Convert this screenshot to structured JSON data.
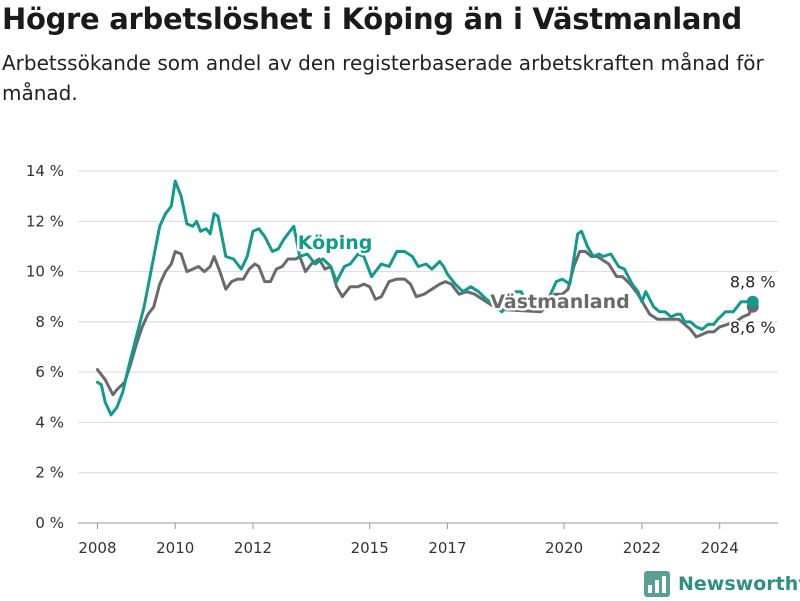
{
  "title": "Högre arbetslöshet i Köping än i Västmanland",
  "subtitle": "Arbetssökande som andel av den registerbaserade arbetskraften månad för månad.",
  "brand": "Newsworthy",
  "colors": {
    "koping": "#139a8f",
    "vastmanland": "#6a6a6a",
    "grid": "#d9d9d9",
    "brand": "#2f8f85"
  },
  "chart_data": {
    "type": "line",
    "title": "Högre arbetslöshet i Köping än i Västmanland",
    "subtitle": "Arbetssökande som andel av den registerbaserade arbetskraften månad för månad.",
    "xlabel": "",
    "ylabel": "",
    "grid": "horizontal",
    "ylim": [
      0,
      14
    ],
    "xlim": [
      2007.5,
      2025.5
    ],
    "y_ticks": [
      0,
      2,
      4,
      6,
      8,
      10,
      12,
      14
    ],
    "y_tick_labels": [
      "0 %",
      "2 %",
      "4 %",
      "6 %",
      "8 %",
      "10 %",
      "12 %",
      "14 %"
    ],
    "x_ticks": [
      2008,
      2010,
      2012,
      2015,
      2017,
      2020,
      2022,
      2024
    ],
    "x_tick_labels": [
      "2008",
      "2010",
      "2012",
      "2015",
      "2017",
      "2020",
      "2022",
      "2024"
    ],
    "series": [
      {
        "name": "Köping",
        "color": "#139a8f",
        "end_label": "8,8 %",
        "points": [
          [
            2008.0,
            5.6
          ],
          [
            2008.1,
            5.5
          ],
          [
            2008.2,
            4.8
          ],
          [
            2008.35,
            4.3
          ],
          [
            2008.5,
            4.6
          ],
          [
            2008.65,
            5.2
          ],
          [
            2008.8,
            6.2
          ],
          [
            2009.0,
            7.4
          ],
          [
            2009.2,
            8.6
          ],
          [
            2009.4,
            10.2
          ],
          [
            2009.6,
            11.8
          ],
          [
            2009.75,
            12.3
          ],
          [
            2009.9,
            12.6
          ],
          [
            2010.0,
            13.6
          ],
          [
            2010.15,
            13.0
          ],
          [
            2010.3,
            11.9
          ],
          [
            2010.45,
            11.8
          ],
          [
            2010.55,
            12.0
          ],
          [
            2010.65,
            11.6
          ],
          [
            2010.8,
            11.7
          ],
          [
            2010.9,
            11.5
          ],
          [
            2011.0,
            12.3
          ],
          [
            2011.1,
            12.2
          ],
          [
            2011.3,
            10.6
          ],
          [
            2011.5,
            10.5
          ],
          [
            2011.7,
            10.1
          ],
          [
            2011.85,
            10.6
          ],
          [
            2012.0,
            11.6
          ],
          [
            2012.15,
            11.7
          ],
          [
            2012.3,
            11.4
          ],
          [
            2012.5,
            10.8
          ],
          [
            2012.65,
            10.9
          ],
          [
            2012.8,
            11.3
          ],
          [
            2013.05,
            11.8
          ],
          [
            2013.2,
            10.6
          ],
          [
            2013.4,
            10.7
          ],
          [
            2013.6,
            10.3
          ],
          [
            2013.8,
            10.5
          ],
          [
            2014.0,
            10.2
          ],
          [
            2014.15,
            9.6
          ],
          [
            2014.35,
            10.2
          ],
          [
            2014.5,
            10.3
          ],
          [
            2014.7,
            10.7
          ],
          [
            2014.85,
            10.6
          ],
          [
            2014.95,
            10.2
          ],
          [
            2015.05,
            9.8
          ],
          [
            2015.3,
            10.3
          ],
          [
            2015.5,
            10.2
          ],
          [
            2015.7,
            10.8
          ],
          [
            2015.9,
            10.8
          ],
          [
            2016.1,
            10.6
          ],
          [
            2016.25,
            10.2
          ],
          [
            2016.45,
            10.3
          ],
          [
            2016.6,
            10.1
          ],
          [
            2016.8,
            10.4
          ],
          [
            2016.9,
            10.2
          ],
          [
            2017.0,
            9.9
          ],
          [
            2017.2,
            9.5
          ],
          [
            2017.4,
            9.2
          ],
          [
            2017.6,
            9.4
          ],
          [
            2017.8,
            9.2
          ],
          [
            2018.0,
            8.9
          ],
          [
            2018.2,
            8.7
          ],
          [
            2018.4,
            8.4
          ],
          [
            2018.6,
            8.8
          ],
          [
            2018.75,
            9.2
          ],
          [
            2018.9,
            9.2
          ],
          [
            2019.0,
            8.8
          ],
          [
            2019.2,
            8.7
          ],
          [
            2019.35,
            8.9
          ],
          [
            2019.5,
            8.6
          ],
          [
            2019.65,
            9.1
          ],
          [
            2019.8,
            9.6
          ],
          [
            2019.95,
            9.7
          ],
          [
            2020.15,
            9.5
          ],
          [
            2020.35,
            11.5
          ],
          [
            2020.45,
            11.6
          ],
          [
            2020.6,
            11.0
          ],
          [
            2020.75,
            10.6
          ],
          [
            2020.9,
            10.7
          ],
          [
            2021.0,
            10.6
          ],
          [
            2021.2,
            10.7
          ],
          [
            2021.4,
            10.2
          ],
          [
            2021.55,
            10.1
          ],
          [
            2021.75,
            9.5
          ],
          [
            2021.9,
            9.2
          ],
          [
            2022.0,
            8.8
          ],
          [
            2022.1,
            9.2
          ],
          [
            2022.3,
            8.6
          ],
          [
            2022.45,
            8.4
          ],
          [
            2022.6,
            8.4
          ],
          [
            2022.75,
            8.2
          ],
          [
            2022.9,
            8.3
          ],
          [
            2023.0,
            8.3
          ],
          [
            2023.1,
            8.0
          ],
          [
            2023.25,
            8.0
          ],
          [
            2023.4,
            7.8
          ],
          [
            2023.55,
            7.7
          ],
          [
            2023.7,
            7.9
          ],
          [
            2023.85,
            7.9
          ],
          [
            2023.95,
            8.1
          ],
          [
            2024.15,
            8.4
          ],
          [
            2024.35,
            8.4
          ],
          [
            2024.55,
            8.8
          ],
          [
            2024.75,
            8.8
          ],
          [
            2024.85,
            8.8
          ]
        ]
      },
      {
        "name": "Västmanland",
        "color": "#6a6a6a",
        "end_label": "8,6 %",
        "points": [
          [
            2008.0,
            6.1
          ],
          [
            2008.2,
            5.7
          ],
          [
            2008.4,
            5.1
          ],
          [
            2008.5,
            5.3
          ],
          [
            2008.7,
            5.6
          ],
          [
            2008.85,
            6.3
          ],
          [
            2009.0,
            7.1
          ],
          [
            2009.15,
            7.8
          ],
          [
            2009.3,
            8.3
          ],
          [
            2009.45,
            8.6
          ],
          [
            2009.6,
            9.5
          ],
          [
            2009.75,
            10.0
          ],
          [
            2009.9,
            10.3
          ],
          [
            2010.0,
            10.8
          ],
          [
            2010.15,
            10.7
          ],
          [
            2010.3,
            10.0
          ],
          [
            2010.45,
            10.1
          ],
          [
            2010.6,
            10.2
          ],
          [
            2010.75,
            10.0
          ],
          [
            2010.9,
            10.2
          ],
          [
            2011.0,
            10.6
          ],
          [
            2011.15,
            10.0
          ],
          [
            2011.3,
            9.3
          ],
          [
            2011.45,
            9.6
          ],
          [
            2011.6,
            9.7
          ],
          [
            2011.75,
            9.7
          ],
          [
            2011.9,
            10.1
          ],
          [
            2012.05,
            10.3
          ],
          [
            2012.15,
            10.2
          ],
          [
            2012.3,
            9.6
          ],
          [
            2012.45,
            9.6
          ],
          [
            2012.6,
            10.1
          ],
          [
            2012.75,
            10.2
          ],
          [
            2012.9,
            10.5
          ],
          [
            2013.1,
            10.5
          ],
          [
            2013.2,
            10.6
          ],
          [
            2013.35,
            10.0
          ],
          [
            2013.5,
            10.3
          ],
          [
            2013.7,
            10.5
          ],
          [
            2013.85,
            10.1
          ],
          [
            2014.0,
            10.2
          ],
          [
            2014.15,
            9.4
          ],
          [
            2014.3,
            9.0
          ],
          [
            2014.5,
            9.4
          ],
          [
            2014.7,
            9.4
          ],
          [
            2014.85,
            9.5
          ],
          [
            2015.0,
            9.4
          ],
          [
            2015.15,
            8.9
          ],
          [
            2015.3,
            9.0
          ],
          [
            2015.5,
            9.6
          ],
          [
            2015.7,
            9.7
          ],
          [
            2015.9,
            9.7
          ],
          [
            2016.05,
            9.5
          ],
          [
            2016.2,
            9.0
          ],
          [
            2016.4,
            9.1
          ],
          [
            2016.6,
            9.3
          ],
          [
            2016.8,
            9.5
          ],
          [
            2016.95,
            9.6
          ],
          [
            2017.1,
            9.5
          ],
          [
            2017.3,
            9.1
          ],
          [
            2017.5,
            9.2
          ],
          [
            2017.7,
            9.1
          ],
          [
            2017.9,
            8.9
          ],
          [
            2018.1,
            8.7
          ],
          [
            2018.3,
            8.5
          ],
          [
            2019.4,
            8.4
          ],
          [
            2019.6,
            8.7
          ],
          [
            2019.75,
            9.1
          ],
          [
            2019.95,
            9.1
          ],
          [
            2020.1,
            9.3
          ],
          [
            2020.25,
            10.2
          ],
          [
            2020.4,
            10.8
          ],
          [
            2020.55,
            10.8
          ],
          [
            2020.7,
            10.6
          ],
          [
            2020.85,
            10.6
          ],
          [
            2020.95,
            10.5
          ],
          [
            2021.15,
            10.3
          ],
          [
            2021.35,
            9.8
          ],
          [
            2021.5,
            9.8
          ],
          [
            2021.7,
            9.5
          ],
          [
            2021.9,
            9.1
          ],
          [
            2022.05,
            8.7
          ],
          [
            2022.2,
            8.3
          ],
          [
            2022.4,
            8.1
          ],
          [
            2022.6,
            8.1
          ],
          [
            2022.8,
            8.1
          ],
          [
            2022.95,
            8.1
          ],
          [
            2023.1,
            7.9
          ],
          [
            2023.25,
            7.7
          ],
          [
            2023.4,
            7.4
          ],
          [
            2023.55,
            7.5
          ],
          [
            2023.7,
            7.6
          ],
          [
            2023.85,
            7.6
          ],
          [
            2024.0,
            7.8
          ],
          [
            2024.2,
            7.9
          ],
          [
            2024.4,
            8.0
          ],
          [
            2024.6,
            8.2
          ],
          [
            2024.75,
            8.3
          ],
          [
            2024.85,
            8.6
          ]
        ]
      }
    ]
  }
}
